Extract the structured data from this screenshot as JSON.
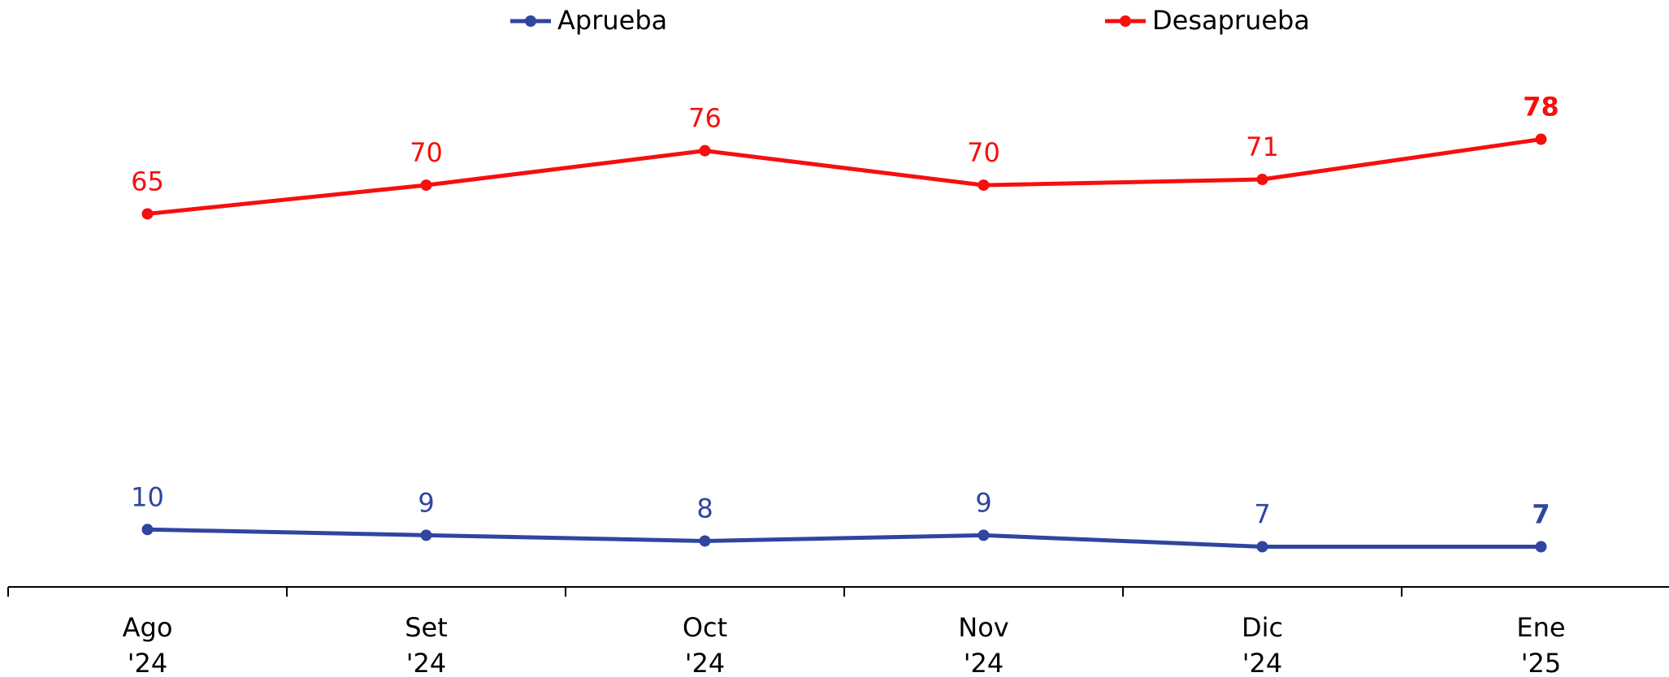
{
  "chart_data": {
    "type": "line",
    "categories": [
      "Ago '24",
      "Set '24",
      "Oct '24",
      "Nov '24",
      "Dic '24",
      "Ene '25"
    ],
    "series": [
      {
        "name": "Aprueba",
        "color": "#2f45a0",
        "values": [
          10,
          9,
          8,
          9,
          7,
          7
        ]
      },
      {
        "name": "Desaprueba",
        "color": "#f50f0f",
        "values": [
          65,
          70,
          76,
          70,
          71,
          78
        ]
      }
    ],
    "ylim": [
      0,
      100
    ]
  }
}
